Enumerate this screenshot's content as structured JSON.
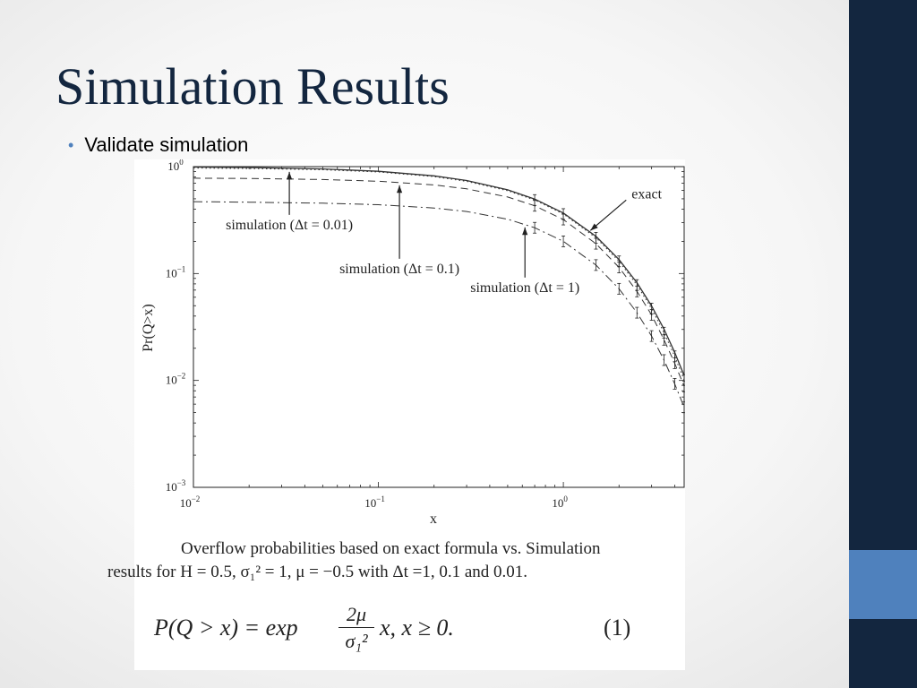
{
  "slide": {
    "title": "Simulation Results",
    "bullet": "Validate simulation",
    "colors": {
      "title": "#13263f",
      "sidebar": "#13263f",
      "accent": "#4f81bd"
    }
  },
  "caption": {
    "line1": "Overflow probabilities based on exact formula vs. Simulation",
    "line2": "results for H = 0.5, σ₁² = 1, μ = −0.5 with Δt =1, 0.1 and 0.01."
  },
  "formula": {
    "lhs": "P(Q > x) = exp",
    "numerator": "2μ",
    "denominator": "σ₁²",
    "rhs": "x,   x ≥ 0.",
    "number": "(1)"
  },
  "chart_data": {
    "type": "line",
    "xlabel": "x",
    "ylabel": "Pr(Q>x)",
    "xscale": "log",
    "yscale": "log",
    "xlim": [
      0.01,
      4.5
    ],
    "ylim": [
      0.001,
      1
    ],
    "x_ticks": [
      {
        "base": "10",
        "exp": "−2"
      },
      {
        "base": "10",
        "exp": "−1"
      },
      {
        "base": "10",
        "exp": "0"
      }
    ],
    "y_ticks": [
      {
        "base": "10",
        "exp": "0"
      },
      {
        "base": "10",
        "exp": "−1"
      },
      {
        "base": "10",
        "exp": "−2"
      },
      {
        "base": "10",
        "exp": "−3"
      }
    ],
    "series": [
      {
        "name": "exact",
        "style": "solid",
        "x": [
          0.01,
          0.02,
          0.05,
          0.1,
          0.2,
          0.3,
          0.5,
          0.7,
          1,
          1.5,
          2,
          2.5,
          3,
          3.5,
          4,
          4.5
        ],
        "y": [
          0.99,
          0.98,
          0.951,
          0.905,
          0.819,
          0.741,
          0.607,
          0.497,
          0.368,
          0.223,
          0.135,
          0.082,
          0.0498,
          0.0302,
          0.0183,
          0.0111
        ]
      },
      {
        "name": "simulation (Δt = 0.01)",
        "style": "dotted",
        "x": [
          0.01,
          0.02,
          0.05,
          0.1,
          0.2,
          0.3,
          0.5,
          0.7,
          1,
          1.5,
          2,
          2.5,
          3,
          3.5,
          4,
          4.5
        ],
        "y": [
          0.97,
          0.96,
          0.935,
          0.89,
          0.805,
          0.728,
          0.595,
          0.487,
          0.36,
          0.216,
          0.13,
          0.078,
          0.047,
          0.028,
          0.0168,
          0.0101
        ]
      },
      {
        "name": "simulation (Δt = 0.1)",
        "style": "dashed",
        "x": [
          0.01,
          0.02,
          0.05,
          0.1,
          0.2,
          0.3,
          0.5,
          0.7,
          1,
          1.5,
          2,
          2.5,
          3,
          3.5,
          4,
          4.5
        ],
        "y": [
          0.78,
          0.775,
          0.758,
          0.73,
          0.675,
          0.62,
          0.52,
          0.43,
          0.32,
          0.19,
          0.114,
          0.068,
          0.041,
          0.024,
          0.0145,
          0.0088
        ]
      },
      {
        "name": "simulation (Δt = 1)",
        "style": "dashdot",
        "x": [
          0.01,
          0.02,
          0.05,
          0.1,
          0.2,
          0.3,
          0.5,
          0.7,
          1,
          1.5,
          2,
          2.5,
          3,
          3.5,
          4,
          4.5
        ],
        "y": [
          0.47,
          0.465,
          0.455,
          0.44,
          0.41,
          0.38,
          0.322,
          0.268,
          0.2,
          0.12,
          0.072,
          0.043,
          0.026,
          0.0155,
          0.0093,
          0.0056
        ]
      }
    ],
    "annotations": [
      {
        "text": "exact",
        "target_series": "exact",
        "at_x": 1.4
      },
      {
        "text": "simulation (Δt = 0.01)",
        "target_series": "simulation (Δt = 0.01)",
        "at_x": 0.033
      },
      {
        "text": "simulation (Δt = 0.1)",
        "target_series": "simulation (Δt = 0.1)",
        "at_x": 0.13
      },
      {
        "text": "simulation (Δt = 1)",
        "target_series": "simulation (Δt = 1)",
        "at_x": 0.62
      }
    ]
  }
}
